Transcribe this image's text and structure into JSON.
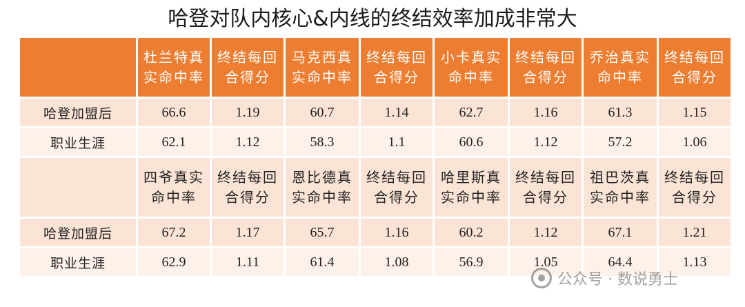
{
  "chart_data": {
    "type": "table",
    "title": "哈登对队内核心&内线的终结效率加成非常大",
    "sections": [
      {
        "headers": [
          "杜兰特真实命中率",
          "终结每回合得分",
          "马克西真实命中率",
          "终结每回合得分",
          "小卡真实命中率",
          "终结每回合得分",
          "乔治真实命中率",
          "终结每回合得分"
        ],
        "rows": [
          {
            "label": "哈登加盟后",
            "values": [
              "66.6",
              "1.19",
              "60.7",
              "1.14",
              "62.7",
              "1.16",
              "61.3",
              "1.15"
            ]
          },
          {
            "label": "职业生涯",
            "values": [
              "62.1",
              "1.12",
              "58.3",
              "1.1",
              "60.6",
              "1.12",
              "57.2",
              "1.06"
            ]
          }
        ]
      },
      {
        "headers": [
          "四爷真实命中率",
          "终结每回合得分",
          "恩比德真实命中率",
          "终结每回合得分",
          "哈里斯真实命中率",
          "终结每回合得分",
          "祖巴茨真实命中率",
          "终结每回合得分"
        ],
        "rows": [
          {
            "label": "哈登加盟后",
            "values": [
              "67.2",
              "1.17",
              "65.7",
              "1.16",
              "60.2",
              "1.12",
              "67.1",
              "1.21"
            ]
          },
          {
            "label": "职业生涯",
            "values": [
              "62.9",
              "1.11",
              "61.4",
              "1.08",
              "56.9",
              "1.05",
              "64.4",
              "1.13"
            ]
          }
        ]
      }
    ]
  },
  "watermark": {
    "text": "公众号 · 数说勇士",
    "icon": "wechat-icon"
  },
  "colors": {
    "header_orange": "#ed7d31",
    "row_peach": "#fbe4d5",
    "row_light": "#fdf1ea"
  }
}
